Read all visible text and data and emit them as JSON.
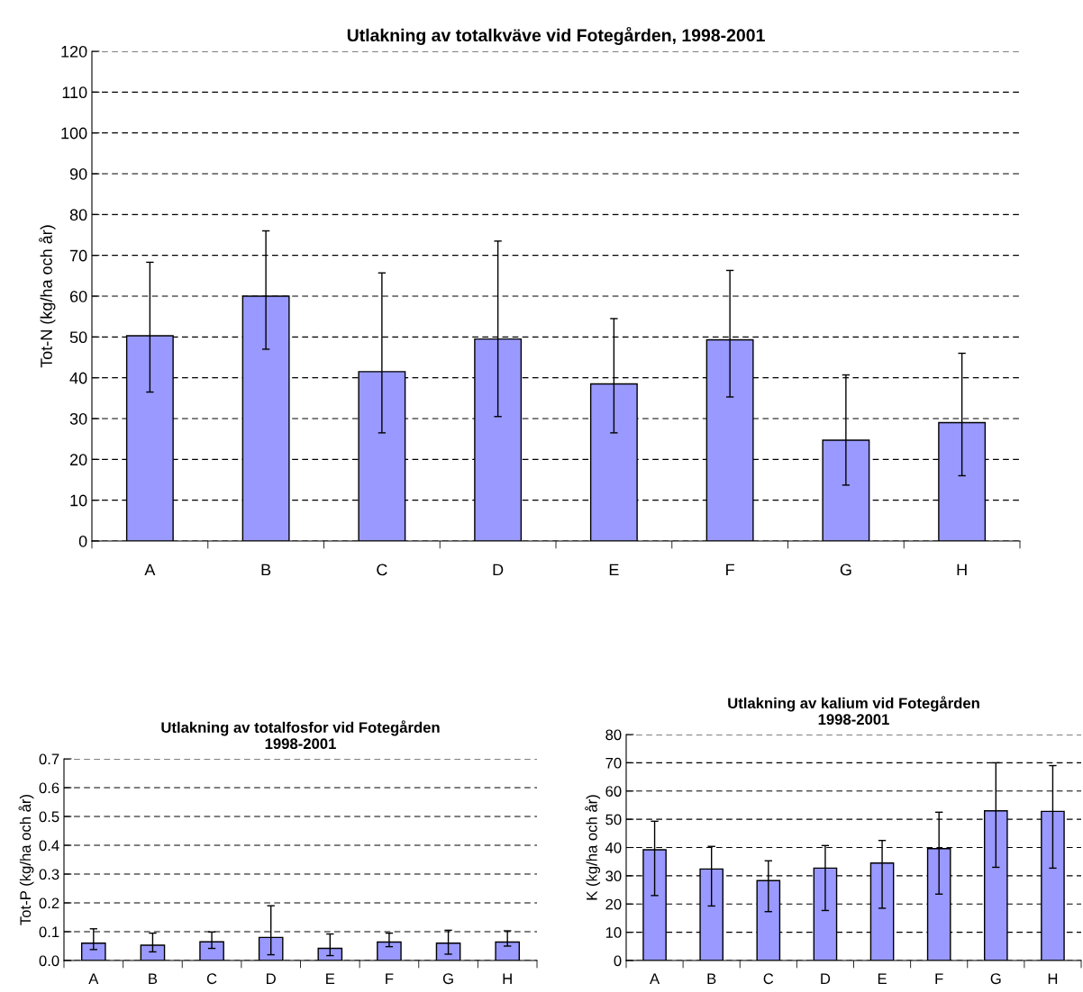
{
  "chart_data": [
    {
      "type": "bar",
      "title": "Utlakning av totalkväve vid Fotegården, 1998-2001",
      "ylabel": "Tot-N (kg/ha och år)",
      "categories": [
        "A",
        "B",
        "C",
        "D",
        "E",
        "F",
        "G",
        "H"
      ],
      "values": [
        50.3,
        60,
        41.5,
        49.5,
        38.5,
        49.3,
        24.7,
        29
      ],
      "errors": [
        [
          36.5,
          68.3
        ],
        [
          47,
          76
        ],
        [
          26.5,
          65.7
        ],
        [
          30.5,
          73.5
        ],
        [
          26.5,
          54.5
        ],
        [
          35.3,
          66.3
        ],
        [
          13.7,
          40.7
        ],
        [
          16,
          46
        ]
      ],
      "color": "#9999ff",
      "ylim": [
        0,
        120
      ],
      "yticks": [
        0,
        10,
        20,
        30,
        40,
        50,
        60,
        70,
        80,
        90,
        100,
        110,
        120
      ],
      "grid": "y",
      "legend": false
    },
    {
      "type": "bar",
      "title": "Utlakning av totalfosfor vid Fotegården\n1998-2001",
      "ylabel": "Tot-P (kg/ha och år)",
      "categories": [
        "A",
        "B",
        "C",
        "D",
        "E",
        "F",
        "G",
        "H"
      ],
      "values": [
        0.06,
        0.053,
        0.065,
        0.08,
        0.042,
        0.064,
        0.06,
        0.064
      ],
      "errors": [
        [
          0.038,
          0.11
        ],
        [
          0.03,
          0.095
        ],
        [
          0.042,
          0.099
        ],
        [
          0.02,
          0.19
        ],
        [
          0.017,
          0.092
        ],
        [
          0.048,
          0.095
        ],
        [
          0.022,
          0.105
        ],
        [
          0.05,
          0.103
        ]
      ],
      "color": "#9999ff",
      "ylim": [
        0,
        0.7
      ],
      "yticks": [
        {
          "value": 0,
          "label": "0.0"
        },
        0.1,
        0.2,
        0.3,
        0.4,
        0.5,
        0.6,
        0.7
      ],
      "grid": "y",
      "legend": false
    },
    {
      "type": "bar",
      "title": "Utlakning av kalium vid Fotegården\n1998-2001",
      "ylabel": "K (kg/ha och år)",
      "categories": [
        "A",
        "B",
        "C",
        "D",
        "E",
        "F",
        "G",
        "H"
      ],
      "values": [
        39.2,
        32.4,
        28.3,
        32.7,
        34.5,
        39.6,
        53,
        52.8
      ],
      "errors": [
        [
          23,
          49.3
        ],
        [
          19.3,
          40.4
        ],
        [
          17.3,
          35.3
        ],
        [
          17.7,
          40.7
        ],
        [
          18.5,
          42.5
        ],
        [
          23.5,
          52.5
        ],
        [
          33,
          70
        ],
        [
          32.7,
          69
        ]
      ],
      "color": "#9999ff",
      "ylim": [
        0,
        80
      ],
      "yticks": [
        0,
        10,
        20,
        30,
        40,
        50,
        60,
        70,
        80
      ],
      "grid": "y",
      "legend": false
    }
  ]
}
